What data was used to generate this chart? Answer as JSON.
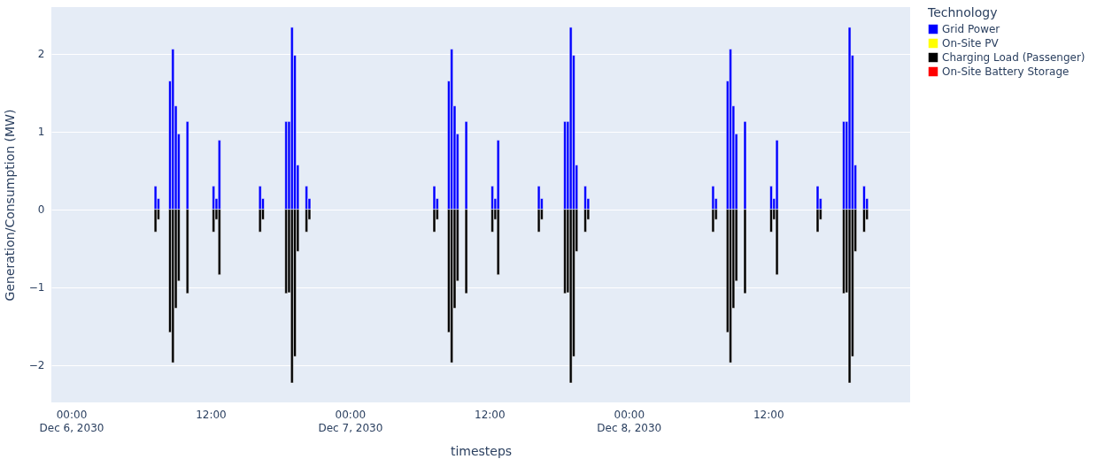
{
  "chart_data": {
    "type": "bar",
    "stacked": true,
    "xlabel": "timesteps",
    "ylabel": "Generation/Consumption (MW)",
    "legend_title": "Technology",
    "legend": "right",
    "grid": "y",
    "x": [
      "2030-12-06T07:15",
      "2030-12-06T07:30",
      "2030-12-06T08:30",
      "2030-12-06T08:45",
      "2030-12-06T09:00",
      "2030-12-06T09:15",
      "2030-12-06T10:00",
      "2030-12-06T12:15",
      "2030-12-06T12:30",
      "2030-12-06T12:45",
      "2030-12-06T16:15",
      "2030-12-06T16:30",
      "2030-12-06T18:30",
      "2030-12-06T18:45",
      "2030-12-06T19:00",
      "2030-12-06T19:15",
      "2030-12-06T19:30",
      "2030-12-06T20:15",
      "2030-12-06T20:30",
      "2030-12-07T07:15",
      "2030-12-07T07:30",
      "2030-12-07T08:30",
      "2030-12-07T08:45",
      "2030-12-07T09:00",
      "2030-12-07T09:15",
      "2030-12-07T10:00",
      "2030-12-07T12:15",
      "2030-12-07T12:30",
      "2030-12-07T12:45",
      "2030-12-07T16:15",
      "2030-12-07T16:30",
      "2030-12-07T18:30",
      "2030-12-07T18:45",
      "2030-12-07T19:00",
      "2030-12-07T19:15",
      "2030-12-07T19:30",
      "2030-12-07T20:15",
      "2030-12-07T20:30",
      "2030-12-08T07:15",
      "2030-12-08T07:30",
      "2030-12-08T08:30",
      "2030-12-08T08:45",
      "2030-12-08T09:00",
      "2030-12-08T09:15",
      "2030-12-08T10:00",
      "2030-12-08T12:15",
      "2030-12-08T12:30",
      "2030-12-08T12:45",
      "2030-12-08T16:15",
      "2030-12-08T16:30",
      "2030-12-08T18:30",
      "2030-12-08T18:45",
      "2030-12-08T19:00",
      "2030-12-08T19:15",
      "2030-12-08T19:30",
      "2030-12-08T20:15",
      "2030-12-08T20:30"
    ],
    "series": [
      {
        "name": "Grid Power",
        "color": "#0000ff",
        "values": [
          0.3,
          0.14,
          1.65,
          2.06,
          1.33,
          0.97,
          1.13,
          0.3,
          0.14,
          0.89,
          0.3,
          0.14,
          1.13,
          1.13,
          2.34,
          1.98,
          0.57,
          0.3,
          0.14,
          0.3,
          0.14,
          1.65,
          2.06,
          1.33,
          0.97,
          1.13,
          0.3,
          0.14,
          0.89,
          0.3,
          0.14,
          1.13,
          1.13,
          2.34,
          1.98,
          0.57,
          0.3,
          0.14,
          0.3,
          0.14,
          1.65,
          2.06,
          1.33,
          0.97,
          1.13,
          0.3,
          0.14,
          0.89,
          0.3,
          0.14,
          1.13,
          1.13,
          2.34,
          1.98,
          0.57,
          0.3,
          0.14
        ]
      },
      {
        "name": "On-Site PV",
        "color": "#ffff00",
        "values": [
          null,
          null,
          null,
          null,
          null,
          null,
          null,
          null,
          null,
          null,
          null,
          null,
          null,
          null,
          null,
          null,
          null,
          null,
          null,
          null,
          null,
          null,
          null,
          null,
          null,
          null,
          null,
          null,
          null,
          null,
          null,
          null,
          null,
          null,
          null,
          null,
          null,
          null,
          null,
          null,
          null,
          null,
          null,
          null,
          null,
          null,
          null,
          null,
          null,
          null,
          null,
          null,
          null,
          null,
          null,
          null,
          null
        ]
      },
      {
        "name": "Charging Load (Passenger)",
        "color": "#000000",
        "values": [
          -0.29,
          -0.13,
          -1.58,
          -1.97,
          -1.27,
          -0.92,
          -1.08,
          -0.29,
          -0.13,
          -0.84,
          -0.29,
          -0.13,
          -1.08,
          -1.07,
          -2.23,
          -1.89,
          -0.54,
          -0.29,
          -0.13,
          -0.29,
          -0.13,
          -1.58,
          -1.97,
          -1.27,
          -0.92,
          -1.08,
          -0.29,
          -0.13,
          -0.84,
          -0.29,
          -0.13,
          -1.08,
          -1.07,
          -2.23,
          -1.89,
          -0.54,
          -0.29,
          -0.13,
          -0.29,
          -0.13,
          -1.58,
          -1.97,
          -1.27,
          -0.92,
          -1.08,
          -0.29,
          -0.13,
          -0.84,
          -0.29,
          -0.13,
          -1.08,
          -1.07,
          -2.23,
          -1.89,
          -0.54,
          -0.29,
          -0.13
        ]
      },
      {
        "name": "On-Site Battery Storage",
        "color": "#ff0000",
        "values": [
          null,
          null,
          null,
          null,
          null,
          null,
          null,
          null,
          null,
          null,
          null,
          null,
          null,
          null,
          null,
          null,
          null,
          null,
          null,
          null,
          null,
          null,
          null,
          null,
          null,
          null,
          null,
          null,
          null,
          null,
          null,
          null,
          null,
          null,
          null,
          null,
          null,
          null,
          null,
          null,
          null,
          null,
          null,
          null,
          null,
          null,
          null,
          null,
          null,
          null,
          null,
          null,
          null,
          null,
          null,
          null,
          null
        ]
      }
    ],
    "xlim": [
      "2030-12-05T22:40",
      "2030-12-08T23:50"
    ],
    "xticks": [
      {
        "value": "2030-12-06T00:00",
        "label": "00:00\nDec 6, 2030"
      },
      {
        "value": "2030-12-06T12:00",
        "label": "12:00"
      },
      {
        "value": "2030-12-07T00:00",
        "label": "00:00\nDec 7, 2030"
      },
      {
        "value": "2030-12-07T12:00",
        "label": "12:00"
      },
      {
        "value": "2030-12-08T00:00",
        "label": "00:00\nDec 8, 2030"
      },
      {
        "value": "2030-12-08T12:00",
        "label": "12:00"
      }
    ],
    "ylim": [
      -2.48,
      2.6
    ],
    "yticks": [
      {
        "value": -2,
        "label": "−2"
      },
      {
        "value": -1,
        "label": "−1"
      },
      0,
      1,
      2
    ]
  }
}
